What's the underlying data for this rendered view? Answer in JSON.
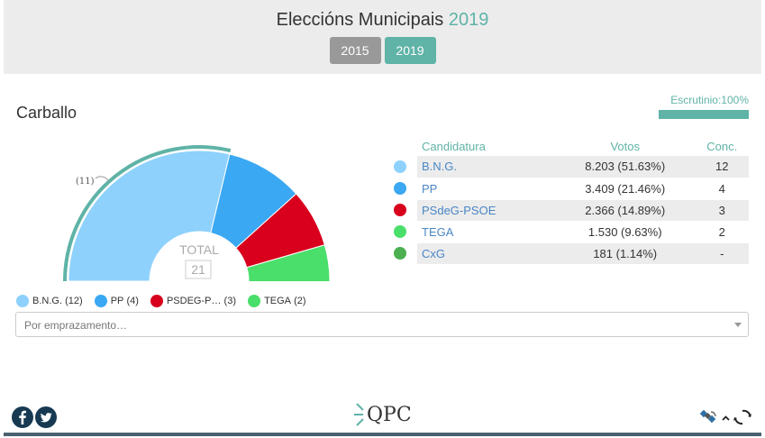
{
  "header": {
    "title_main": "Eleccións Municipais",
    "title_year": "2019",
    "year_tabs": [
      "2015",
      "2019"
    ],
    "active_year": "2019"
  },
  "municipality": "Carballo",
  "scrutiny": {
    "label": "Escrutinio:100%",
    "percent": 100
  },
  "chart": {
    "center_label": "TOTAL",
    "total_seats": "21",
    "majority_label": "(11)"
  },
  "table": {
    "headers": {
      "candidate": "Candidatura",
      "votes": "Votos",
      "seats": "Conc."
    },
    "rows": [
      {
        "name": "B.N.G.",
        "votes": "8.203 (51.63%)",
        "seats": "12",
        "color": "#8ed1fc"
      },
      {
        "name": "PP",
        "votes": "3.409 (21.46%)",
        "seats": "4",
        "color": "#3aa8f2"
      },
      {
        "name": "PSdeG-PSOE",
        "votes": "2.366 (14.89%)",
        "seats": "3",
        "color": "#d8001c"
      },
      {
        "name": "TEGA",
        "votes": "1.530 (9.63%)",
        "seats": "2",
        "color": "#4ade6a"
      },
      {
        "name": "CxG",
        "votes": "181 (1.14%)",
        "seats": "-",
        "color": "#4caf50"
      }
    ]
  },
  "legend": [
    {
      "name": "B.N.G.",
      "seats": "(12)",
      "color": "#8ed1fc"
    },
    {
      "name": "PP",
      "seats": "(4)",
      "color": "#3aa8f2"
    },
    {
      "name": "PSDEG-P…",
      "seats": "(3)",
      "color": "#d8001c"
    },
    {
      "name": "TEGA",
      "seats": "(2)",
      "color": "#4ade6a"
    }
  ],
  "search": {
    "placeholder": "Por emprazamento…"
  },
  "footer": {
    "logo": "QPC"
  },
  "colors": {
    "accent": "#5fb3a7",
    "social": "#173a52"
  }
}
